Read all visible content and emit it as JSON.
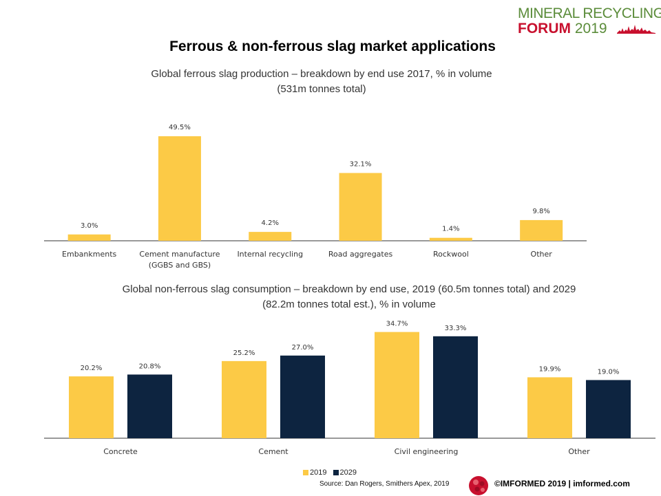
{
  "logo": {
    "line1": "MINERAL RECYCLING",
    "line2_bold": "FORUM",
    "line2_year": "2019"
  },
  "title": "Ferrous & non-ferrous slag market applications",
  "chart_data": [
    {
      "type": "bar",
      "title": "Global ferrous slag production – breakdown by end use 2017, % in volume",
      "subtitle": "(531m tonnes total)",
      "categories": [
        [
          "Embankments"
        ],
        [
          "Cement manufacture",
          "(GGBS and GBS)"
        ],
        [
          "Internal recycling"
        ],
        [
          "Road aggregates"
        ],
        [
          "Rockwool"
        ],
        [
          "Other"
        ]
      ],
      "values": [
        3.0,
        49.5,
        4.2,
        32.1,
        1.4,
        9.8
      ],
      "value_labels": [
        "3.0%",
        "49.5%",
        "4.2%",
        "32.1%",
        "1.4%",
        "9.8%"
      ],
      "color": "#fcca46",
      "grid": false
    },
    {
      "type": "bar",
      "title": "Global non-ferrous slag consumption – breakdown by end use, 2019 (60.5m tonnes total) and 2029",
      "subtitle": "(82.2m tonnes total est.), % in volume",
      "categories": [
        "Concrete",
        "Cement",
        "Civil engineering",
        "Other"
      ],
      "series": [
        {
          "name": "2019",
          "color": "#fcca46",
          "values": [
            20.2,
            25.2,
            34.7,
            19.9
          ],
          "value_labels": [
            "20.2%",
            "25.2%",
            "34.7%",
            "19.9%"
          ]
        },
        {
          "name": "2029",
          "color": "#0d2440",
          "values": [
            20.8,
            27.0,
            33.3,
            19.0
          ],
          "value_labels": [
            "20.8%",
            "27.0%",
            "33.3%",
            "19.0%"
          ]
        }
      ],
      "legend_position": "bottom-center",
      "grid": false
    }
  ],
  "source": "Source: Dan Rogers, Smithers Apex, 2019",
  "footer": "©IMFORMED 2019  | imformed.com"
}
